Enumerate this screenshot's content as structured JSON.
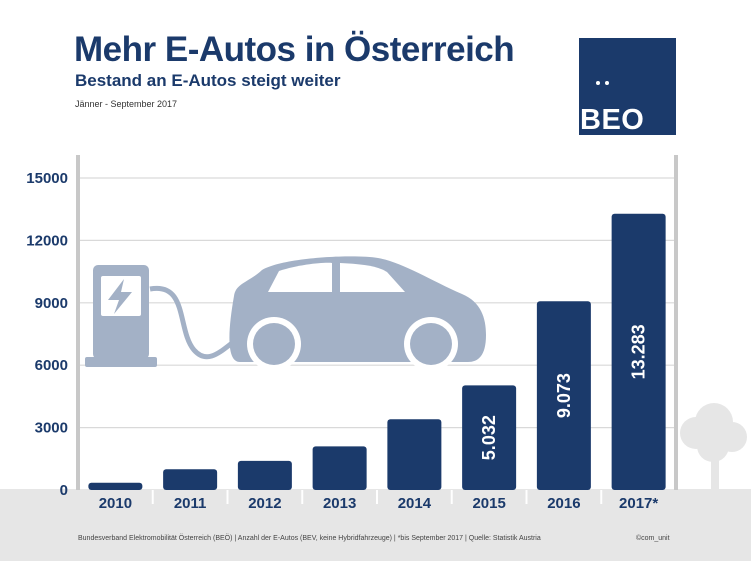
{
  "header": {
    "title": "Mehr E-Autos in Österreich",
    "subtitle": "Bestand an E-Autos steigt weiter",
    "period": "Jänner - September 2017"
  },
  "logo": {
    "text": "BEO"
  },
  "footer": {
    "source": "Bundesverband Elektromobilität Österreich (BEÖ) | Anzahl der E-Autos (BEV, keine Hybridfahrzeuge) | *bis September 2017 | Quelle: Statistik Austria",
    "credit": "©com_unit"
  },
  "colors": {
    "bar": "#1b3a6b",
    "accent": "#1b3a6b",
    "illustration": "#a3b1c6",
    "ground": "#e6e6e6",
    "gridline": "#d9d9d9"
  },
  "chart_data": {
    "type": "bar",
    "categories": [
      "2010",
      "2011",
      "2012",
      "2013",
      "2014",
      "2015",
      "2016",
      "2017*"
    ],
    "values": [
      350,
      1000,
      1400,
      2100,
      3400,
      5032,
      9073,
      13283
    ],
    "data_labels": [
      "",
      "",
      "",
      "",
      "",
      "5.032",
      "9.073",
      "13.283"
    ],
    "yticks": [
      "0",
      "3000",
      "6000",
      "9000",
      "12000",
      "15000"
    ],
    "ylim": [
      0,
      15000
    ],
    "grid": true,
    "legend": "none"
  }
}
